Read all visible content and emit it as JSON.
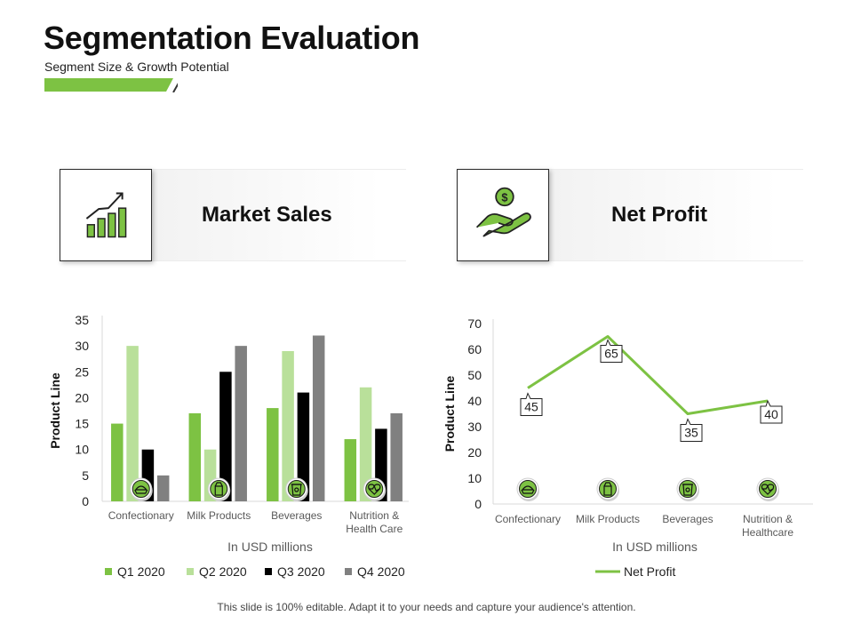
{
  "slide": {
    "title": "Segmentation Evaluation",
    "subtitle": "Segment Size & Growth Potential",
    "footer": "This slide is 100% editable. Adapt it to your needs and capture your audience's attention.",
    "accent_color": "#7dc243"
  },
  "cards": {
    "left": {
      "label": "Market Sales",
      "icon": "growth-chart-icon"
    },
    "right": {
      "label": "Net Profit",
      "icon": "money-hand-icon"
    }
  },
  "colors": {
    "q1": "#7dc243",
    "q2": "#b9e09a",
    "q3": "#000000",
    "q4": "#808080",
    "line": "#7dc243"
  },
  "chart_data": [
    {
      "type": "bar",
      "categories": [
        "Confectionary",
        "Milk Products",
        "Beverages",
        "Nutrition & Health Care"
      ],
      "category_icons": [
        "pie-icon",
        "milk-carton-icon",
        "cup-icon",
        "heart-pulse-icon"
      ],
      "series": [
        {
          "name": "Q1 2020",
          "values": [
            15,
            17,
            18,
            12
          ]
        },
        {
          "name": "Q2 2020",
          "values": [
            30,
            10,
            29,
            22
          ]
        },
        {
          "name": "Q3 2020",
          "values": [
            10,
            25,
            21,
            14
          ]
        },
        {
          "name": "Q4 2020",
          "values": [
            5,
            30,
            32,
            17
          ]
        }
      ],
      "ylabel": "Product Line",
      "xlabel": "In USD millions",
      "ylim": [
        0,
        35
      ],
      "yticks": [
        0,
        5,
        10,
        15,
        20,
        25,
        30,
        35
      ],
      "grid": false,
      "legend": "bottom"
    },
    {
      "type": "line",
      "categories": [
        "Confectionary",
        "Milk Products",
        "Beverages",
        "Nutrition & Healthcare"
      ],
      "category_icons": [
        "pie-icon",
        "milk-carton-icon",
        "cup-icon",
        "heart-pulse-icon"
      ],
      "series": [
        {
          "name": "Net Profit",
          "values": [
            45,
            65,
            35,
            40
          ]
        }
      ],
      "ylabel": "Product Line",
      "xlabel": "In USD millions",
      "ylim": [
        0,
        70
      ],
      "yticks": [
        0,
        10,
        20,
        30,
        40,
        50,
        60,
        70
      ],
      "grid": false,
      "legend": "bottom"
    }
  ]
}
